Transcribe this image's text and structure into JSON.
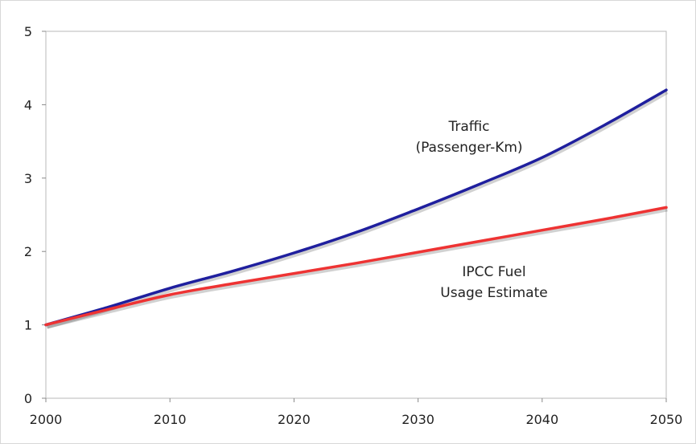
{
  "chart_data": {
    "type": "line",
    "x": [
      2000,
      2005,
      2010,
      2015,
      2020,
      2025,
      2030,
      2035,
      2040,
      2045,
      2050
    ],
    "xlim": [
      2000,
      2050
    ],
    "ylim": [
      0,
      5
    ],
    "xticks": [
      2000,
      2010,
      2020,
      2030,
      2040,
      2050
    ],
    "yticks": [
      0,
      1,
      2,
      3,
      4,
      5
    ],
    "grid": false,
    "series": [
      {
        "name": "Traffic (Passenger-Km)",
        "label_lines": [
          "Traffic",
          "(Passenger-Km)"
        ],
        "color": "#1f1f9e",
        "values": [
          1.0,
          1.24,
          1.5,
          1.73,
          1.98,
          2.26,
          2.58,
          2.92,
          3.28,
          3.72,
          4.2
        ]
      },
      {
        "name": "IPCC Fuel Usage Estimate",
        "label_lines": [
          "IPCC Fuel",
          "Usage Estimate"
        ],
        "color": "#ee3333",
        "values": [
          1.0,
          1.21,
          1.41,
          1.56,
          1.7,
          1.84,
          1.99,
          2.14,
          2.29,
          2.44,
          2.6
        ]
      }
    ]
  }
}
